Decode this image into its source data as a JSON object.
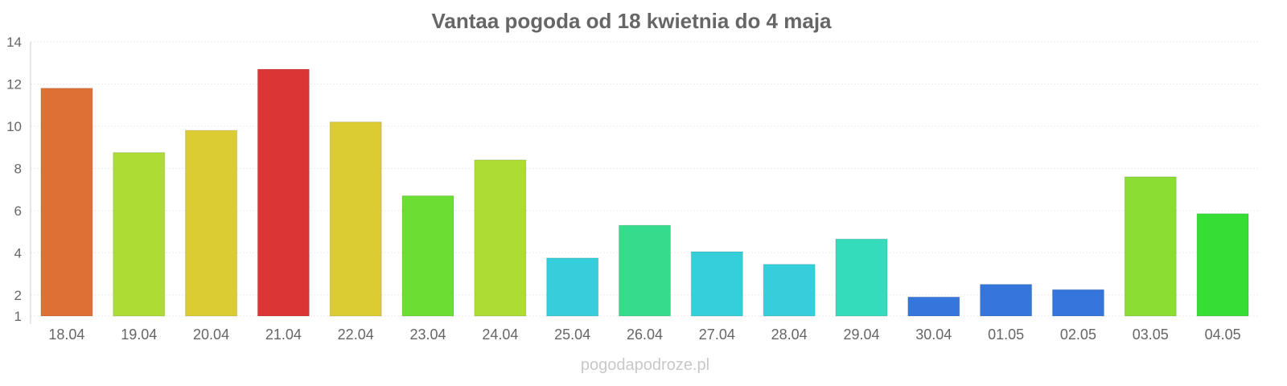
{
  "chart_data": {
    "type": "bar",
    "title": "Vantaa pogoda od 18 kwietnia do 4 maja",
    "xlabel": "",
    "ylabel": "",
    "ylim": [
      1,
      14
    ],
    "yticks": [
      1,
      2,
      4,
      6,
      8,
      10,
      12,
      14
    ],
    "grid": true,
    "categories": [
      "18.04",
      "19.04",
      "20.04",
      "21.04",
      "22.04",
      "23.04",
      "24.04",
      "25.04",
      "26.04",
      "27.04",
      "28.04",
      "29.04",
      "30.04",
      "01.05",
      "02.05",
      "03.05",
      "04.05"
    ],
    "values": [
      11.8,
      8.75,
      9.8,
      12.7,
      10.2,
      6.7,
      8.4,
      3.75,
      5.3,
      4.05,
      3.45,
      4.65,
      1.9,
      2.5,
      2.25,
      7.6,
      5.85
    ],
    "colors": [
      "#de7035",
      "#addd33",
      "#dccc33",
      "#dc3535",
      "#dccc33",
      "#6cdd33",
      "#addd33",
      "#35ceda",
      "#35dc8c",
      "#35cfda",
      "#35ceda",
      "#35dcbb",
      "#3576dc",
      "#3576dc",
      "#3576dc",
      "#8cdd33",
      "#35dd35"
    ]
  },
  "watermark": "pogodapodroze.pl"
}
